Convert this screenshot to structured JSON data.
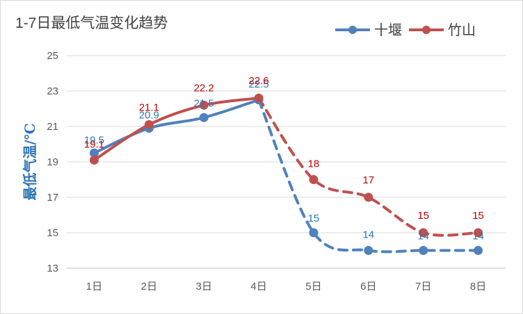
{
  "chart_data": {
    "type": "line",
    "title": "1-7日最低气温变化趋势",
    "xlabel": "",
    "ylabel": "最低气温/℃",
    "categories": [
      "1日",
      "2日",
      "3日",
      "4日",
      "5日",
      "6日",
      "7日",
      "8日"
    ],
    "ylim": [
      13,
      25
    ],
    "yticks": [
      13,
      15,
      17,
      19,
      21,
      23,
      25
    ],
    "grid": true,
    "legend_position": "top-right",
    "observed_through": "4日",
    "series": [
      {
        "name": "十堰",
        "color": "#4f81bd",
        "values": [
          19.5,
          20.9,
          21.5,
          22.5,
          15,
          14,
          14,
          14
        ],
        "labels": [
          "19.5",
          "20.9",
          "21.5",
          "22.5",
          "15",
          "14",
          "14",
          "14"
        ]
      },
      {
        "name": "竹山",
        "color": "#c0504d",
        "values": [
          19.1,
          21.1,
          22.2,
          22.6,
          18,
          17,
          15,
          15
        ],
        "labels": [
          "19.1",
          "21.1",
          "22.2",
          "22.6",
          "18",
          "17",
          "15",
          "15"
        ]
      }
    ],
    "label_colors": {
      "十堰": "#2e75b6",
      "竹山": "#c00000"
    }
  }
}
